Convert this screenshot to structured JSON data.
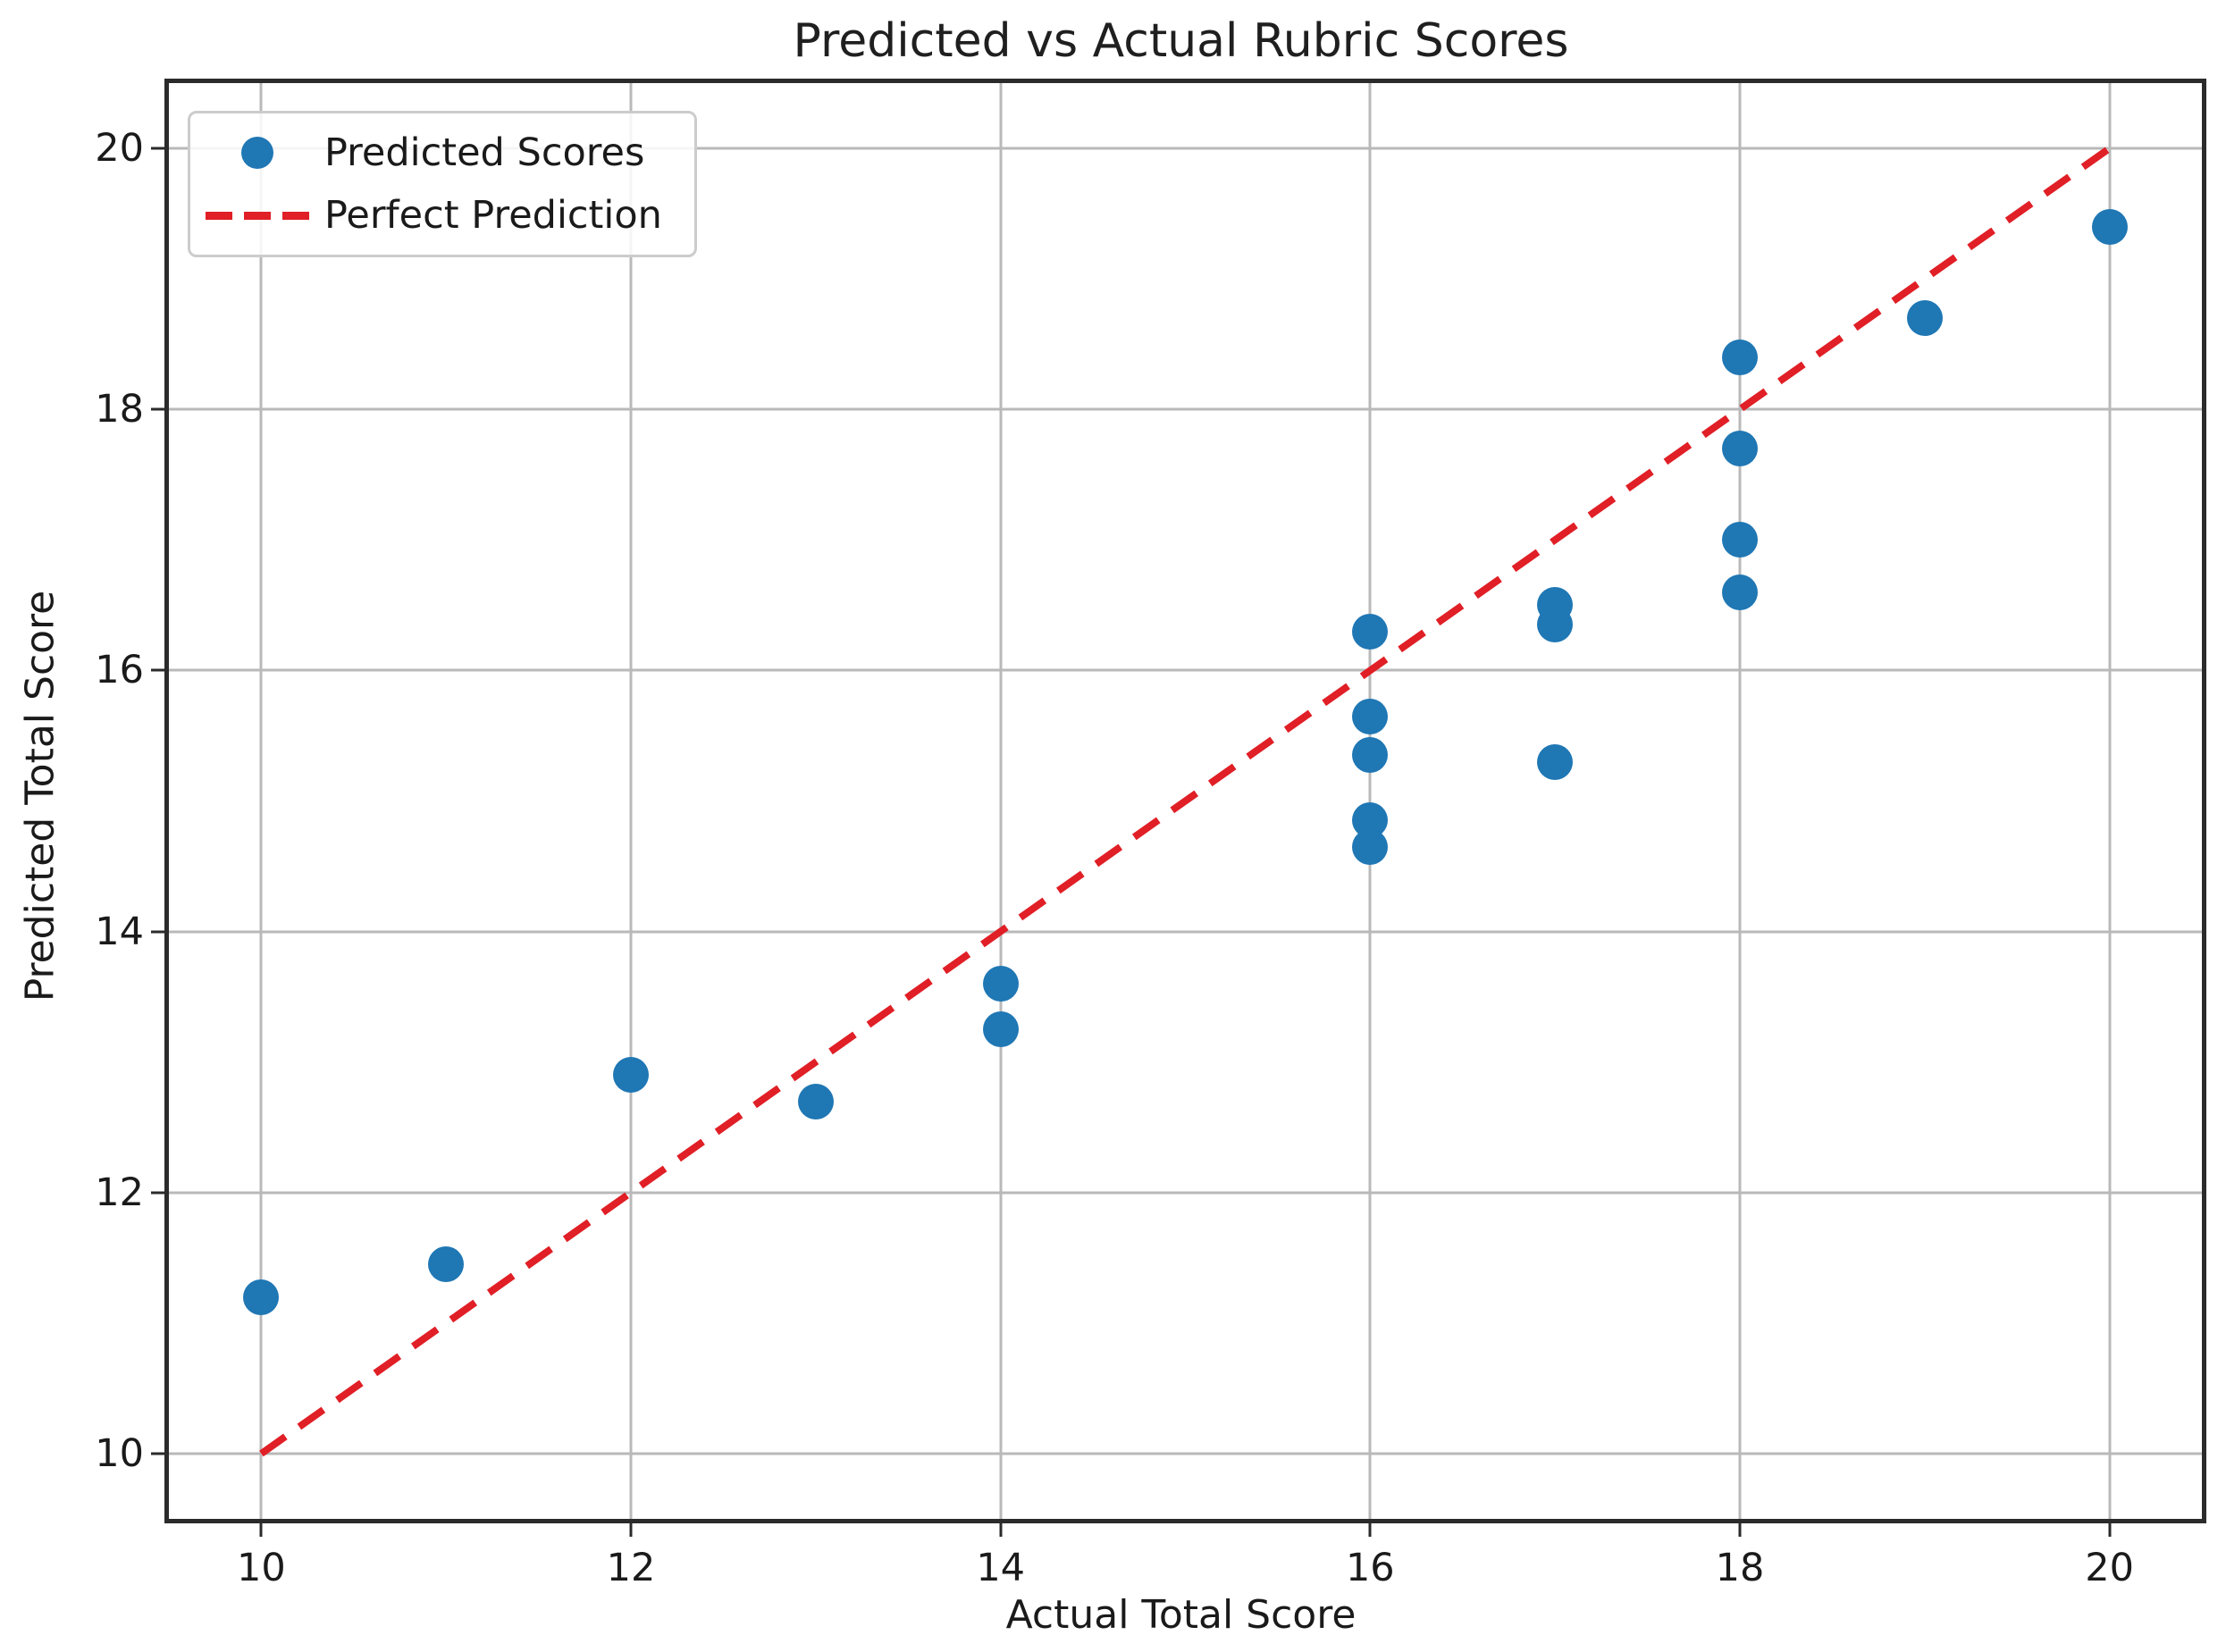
{
  "chart_data": {
    "type": "scatter",
    "title": "Predicted vs Actual Rubric Scores",
    "xlabel": "Actual Total Score",
    "ylabel": "Predicted Total Score",
    "xlim": [
      9.5,
      20.5
    ],
    "ylim": [
      9.5,
      20.5
    ],
    "xticks": [
      10,
      12,
      14,
      16,
      18,
      20
    ],
    "yticks": [
      10,
      12,
      14,
      16,
      18,
      20
    ],
    "grid": true,
    "legend_position": "upper left",
    "colors": {
      "scatter": "#1f77b4",
      "line": "#e01f26",
      "grid": "#b9b9b9",
      "spine": "#2b2b2b",
      "text": "#1a1a1a"
    },
    "series": [
      {
        "name": "Predicted Scores",
        "kind": "scatter",
        "color": "#1f77b4",
        "points": [
          [
            10,
            11.2
          ],
          [
            11,
            11.45
          ],
          [
            12,
            12.9
          ],
          [
            13,
            12.7
          ],
          [
            14,
            13.6
          ],
          [
            14,
            13.25
          ],
          [
            16,
            16.3
          ],
          [
            16,
            15.65
          ],
          [
            16,
            15.35
          ],
          [
            16,
            14.85
          ],
          [
            16,
            14.65
          ],
          [
            17,
            16.5
          ],
          [
            17,
            16.35
          ],
          [
            17,
            15.3
          ],
          [
            18,
            18.4
          ],
          [
            18,
            17.7
          ],
          [
            18,
            17.0
          ],
          [
            18,
            16.6
          ],
          [
            19,
            18.7
          ],
          [
            20,
            19.4
          ]
        ]
      },
      {
        "name": "Perfect Prediction",
        "kind": "line",
        "style": "dashed",
        "color": "#e01f26",
        "points": [
          [
            10,
            10
          ],
          [
            20,
            20
          ]
        ]
      }
    ]
  }
}
